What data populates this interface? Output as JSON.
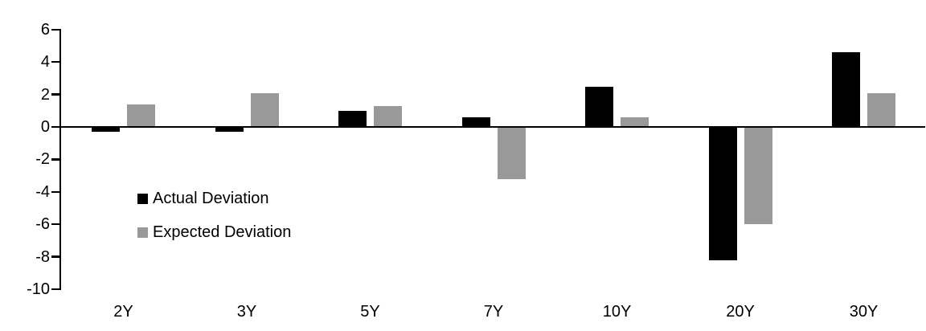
{
  "chart_data": {
    "type": "bar",
    "title": "",
    "categories": [
      "2Y",
      "3Y",
      "5Y",
      "7Y",
      "10Y",
      "20Y",
      "30Y"
    ],
    "series": [
      {
        "name": "Actual Deviation",
        "color": "#000000",
        "values": [
          -0.3,
          -0.3,
          1.0,
          0.6,
          2.5,
          -8.2,
          4.6
        ]
      },
      {
        "name": "Expected Deviation",
        "color": "#999999",
        "values": [
          1.4,
          2.1,
          1.3,
          -3.2,
          0.6,
          -6.0,
          2.1
        ]
      }
    ],
    "xlabel": "",
    "ylabel": "",
    "ylim": [
      -10,
      6
    ],
    "y_tick_step": 2,
    "y_tick_labels": [
      "6",
      "4",
      "2",
      "0",
      "-2",
      "-4",
      "-6",
      "-8",
      "-10"
    ],
    "grid": false,
    "legend_position": "inside-left",
    "axis_color": "#000000",
    "background_color": "#ffffff"
  }
}
